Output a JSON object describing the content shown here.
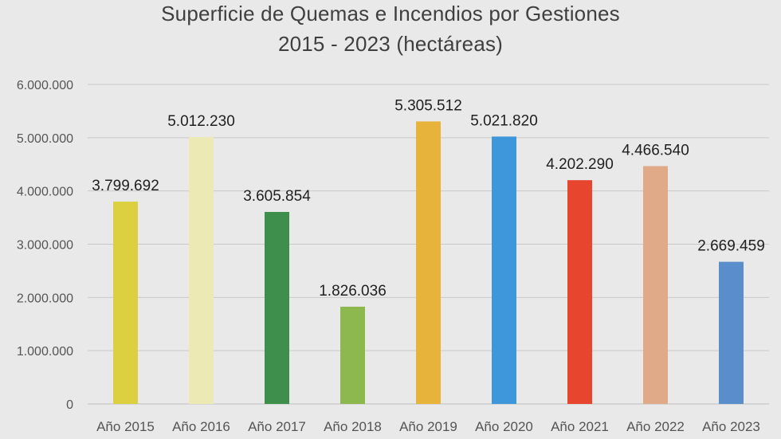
{
  "chart_data": {
    "type": "bar",
    "title_lines": [
      "Superficie de Quemas e Incendios por Gestiones",
      "2015 - 2023 (hectáreas)"
    ],
    "xlabel": "",
    "ylabel": "",
    "ylim": [
      0,
      6000000
    ],
    "yticks": [
      0,
      1000000,
      2000000,
      3000000,
      4000000,
      5000000,
      6000000
    ],
    "ytick_labels": [
      "0",
      "1.000.000",
      "2.000.000",
      "3.000.000",
      "4.000.000",
      "5.000.000",
      "6.000.000"
    ],
    "grid": true,
    "legend": "none",
    "categories": [
      "Año 2015",
      "Año 2016",
      "Año 2017",
      "Año 2018",
      "Año 2019",
      "Año 2020",
      "Año 2021",
      "Año 2022",
      "Año 2023"
    ],
    "values": [
      3799692,
      5012230,
      3605854,
      1826036,
      5305512,
      5021820,
      4202290,
      4466540,
      2669459
    ],
    "value_labels": [
      "3.799.692",
      "5.012.230",
      "3.605.854",
      "1.826.036",
      "5.305.512",
      "5.021.820",
      "4.202.290",
      "4.466.540",
      "2.669.459"
    ],
    "colors": [
      "#dcd040",
      "#ece9b4",
      "#3e8f4b",
      "#8cb84e",
      "#e8b33a",
      "#3f97db",
      "#e8452e",
      "#e0aa88",
      "#5a8dcb"
    ]
  }
}
